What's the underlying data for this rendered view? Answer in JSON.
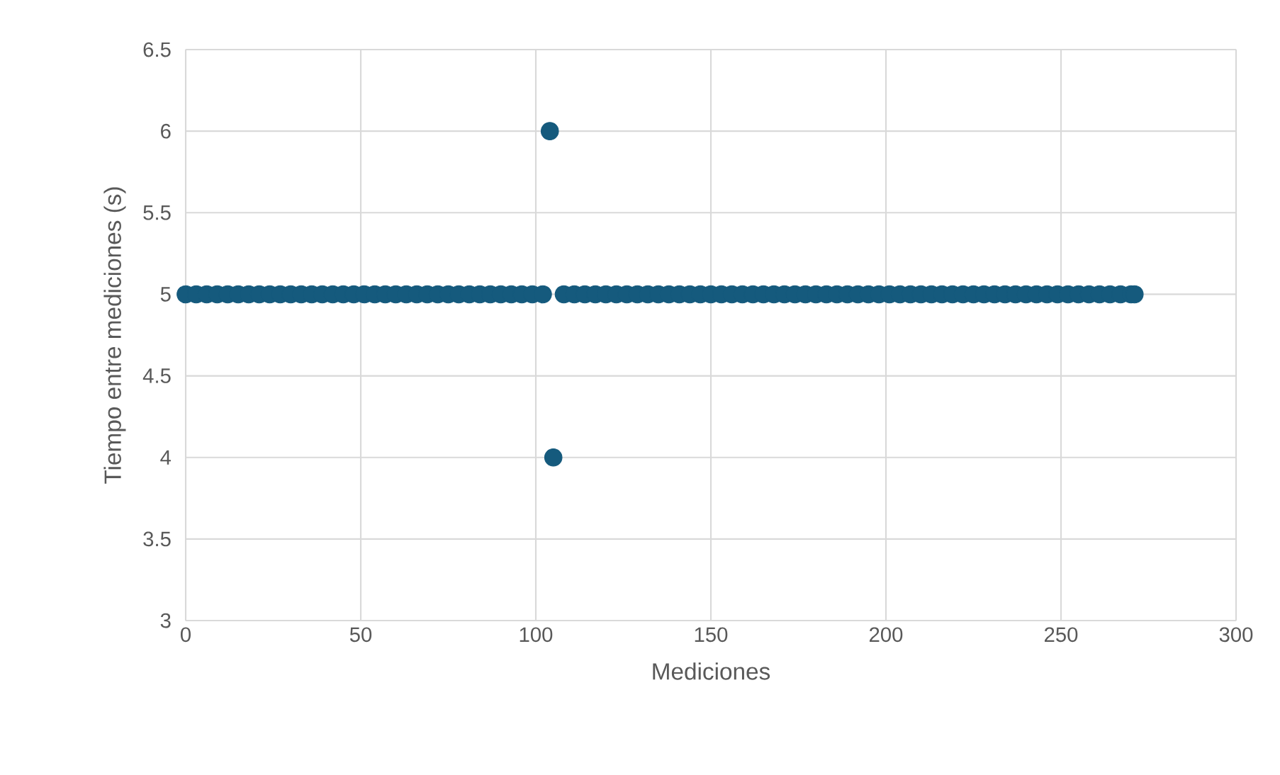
{
  "chart_data": {
    "type": "scatter",
    "xlabel": "Mediciones",
    "ylabel": "Tiempo entre mediciones (s)",
    "xlim": [
      0,
      300
    ],
    "xticks": [
      0,
      50,
      100,
      150,
      200,
      250,
      300
    ],
    "ylim": [
      3,
      6.5
    ],
    "yticks": [
      3,
      3.5,
      4,
      4.5,
      5,
      5.5,
      6,
      6.5
    ],
    "grid": true,
    "marker": "circle",
    "series": [
      {
        "color": "#155a7d",
        "x": [
          0,
          3,
          6,
          9,
          12,
          15,
          18,
          21,
          24,
          27,
          30,
          33,
          36,
          39,
          42,
          45,
          48,
          51,
          54,
          57,
          60,
          63,
          66,
          69,
          72,
          75,
          78,
          81,
          84,
          87,
          90,
          93,
          96,
          99,
          102,
          104,
          105,
          108,
          111,
          114,
          117,
          120,
          123,
          126,
          129,
          132,
          135,
          138,
          141,
          144,
          147,
          150,
          153,
          156,
          159,
          162,
          165,
          168,
          171,
          174,
          177,
          180,
          183,
          186,
          189,
          192,
          195,
          198,
          201,
          204,
          207,
          210,
          213,
          216,
          219,
          222,
          225,
          228,
          231,
          234,
          237,
          240,
          243,
          246,
          249,
          252,
          255,
          258,
          261,
          264,
          267,
          270,
          271
        ],
        "values": [
          5,
          5,
          5,
          5,
          5,
          5,
          5,
          5,
          5,
          5,
          5,
          5,
          5,
          5,
          5,
          5,
          5,
          5,
          5,
          5,
          5,
          5,
          5,
          5,
          5,
          5,
          5,
          5,
          5,
          5,
          5,
          5,
          5,
          5,
          5,
          6,
          4,
          5,
          5,
          5,
          5,
          5,
          5,
          5,
          5,
          5,
          5,
          5,
          5,
          5,
          5,
          5,
          5,
          5,
          5,
          5,
          5,
          5,
          5,
          5,
          5,
          5,
          5,
          5,
          5,
          5,
          5,
          5,
          5,
          5,
          5,
          5,
          5,
          5,
          5,
          5,
          5,
          5,
          5,
          5,
          5,
          5,
          5,
          5,
          5,
          5,
          5,
          5,
          5,
          5,
          5,
          5,
          5
        ]
      }
    ]
  }
}
